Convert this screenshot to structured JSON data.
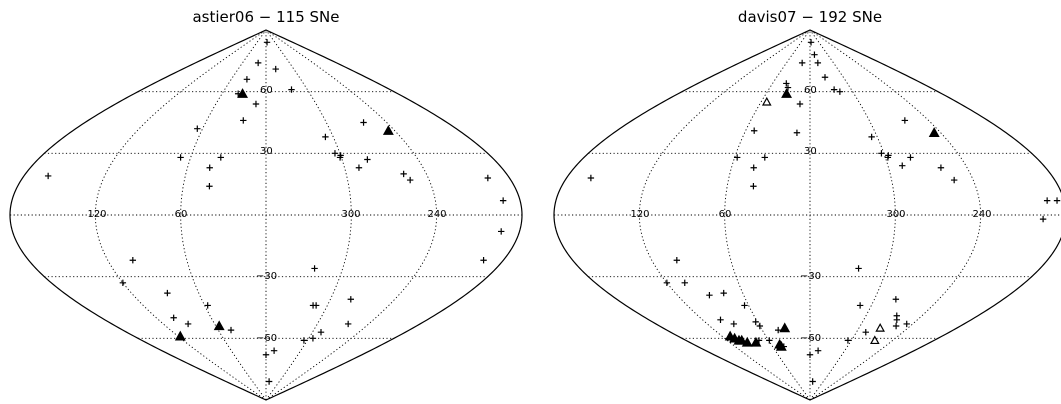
{
  "chart_data": [
    {
      "type": "scatter",
      "projection": "sinusoidal",
      "title": "astier06 − 115 SNe",
      "lon_ticks": [
        "120",
        "60",
        "300",
        "240"
      ],
      "lat_ticks": [
        "60",
        "30",
        "−30",
        "−60"
      ],
      "grid": true,
      "points": [
        {
          "lon": 353,
          "lat": 84,
          "m": "+"
        },
        {
          "lon": 20,
          "lat": 74,
          "m": "+"
        },
        {
          "lon": 33,
          "lat": 66,
          "m": "+"
        },
        {
          "lon": 38,
          "lat": 59,
          "m": "+"
        },
        {
          "lon": 12,
          "lat": 54,
          "m": "+"
        },
        {
          "lon": 323,
          "lat": 61,
          "m": "+"
        },
        {
          "lon": 339,
          "lat": 71,
          "m": "+"
        },
        {
          "lon": 32,
          "lat": 59,
          "m": "▲"
        },
        {
          "lon": 23,
          "lat": 46,
          "m": "+"
        },
        {
          "lon": 65,
          "lat": 42,
          "m": "+"
        },
        {
          "lon": 68,
          "lat": 28,
          "m": "+"
        },
        {
          "lon": 36,
          "lat": 28,
          "m": "+"
        },
        {
          "lon": 43,
          "lat": 23,
          "m": "+"
        },
        {
          "lon": 41,
          "lat": 14,
          "m": "+"
        },
        {
          "lon": 307,
          "lat": 38,
          "m": "+"
        },
        {
          "lon": 304,
          "lat": 30,
          "m": "+"
        },
        {
          "lon": 300,
          "lat": 29,
          "m": "+"
        },
        {
          "lon": 301,
          "lat": 28,
          "m": "+"
        },
        {
          "lon": 289,
          "lat": 23,
          "m": "+"
        },
        {
          "lon": 280,
          "lat": 27,
          "m": "+"
        },
        {
          "lon": 263,
          "lat": 45,
          "m": "+"
        },
        {
          "lon": 246,
          "lat": 41,
          "m": "▲"
        },
        {
          "lon": 257,
          "lat": 20,
          "m": "+"
        },
        {
          "lon": 254,
          "lat": 17,
          "m": "+"
        },
        {
          "lon": 162,
          "lat": 19,
          "m": "+"
        },
        {
          "lon": 196,
          "lat": 18,
          "m": "+"
        },
        {
          "lon": 195,
          "lat": -22,
          "m": "+"
        },
        {
          "lon": 120,
          "lat": -33,
          "m": "+"
        },
        {
          "lon": 101,
          "lat": -22,
          "m": "+"
        },
        {
          "lon": 88,
          "lat": -38,
          "m": "+"
        },
        {
          "lon": 101,
          "lat": -50,
          "m": "+"
        },
        {
          "lon": 91,
          "lat": -53,
          "m": "+"
        },
        {
          "lon": 117,
          "lat": -59,
          "m": "▲"
        },
        {
          "lon": 57,
          "lat": -44,
          "m": "+"
        },
        {
          "lon": 44,
          "lat": -56,
          "m": "+"
        },
        {
          "lon": 56,
          "lat": -54,
          "m": "▲"
        },
        {
          "lon": 322,
          "lat": -26,
          "m": "+"
        },
        {
          "lon": 311,
          "lat": -44,
          "m": "+"
        },
        {
          "lon": 314,
          "lat": -44,
          "m": "+"
        },
        {
          "lon": 281,
          "lat": -41,
          "m": "+"
        },
        {
          "lon": 289,
          "lat": -57,
          "m": "+"
        },
        {
          "lon": 305,
          "lat": -61,
          "m": "+"
        },
        {
          "lon": 294,
          "lat": -60,
          "m": "+"
        },
        {
          "lon": 264,
          "lat": -53,
          "m": "+"
        },
        {
          "lon": 346,
          "lat": -66,
          "m": "+"
        },
        {
          "lon": 0,
          "lat": -68,
          "m": "+"
        },
        {
          "lon": 346,
          "lat": -81,
          "m": "+"
        },
        {
          "lon": 192,
          "lat": 7,
          "m": "+"
        },
        {
          "lon": 193,
          "lat": -8,
          "m": "+"
        }
      ]
    },
    {
      "type": "scatter",
      "projection": "sinusoidal",
      "title": "davis07 − 192 SNe",
      "lon_ticks": [
        "120",
        "60",
        "300",
        "240"
      ],
      "lat_ticks": [
        "60",
        "30",
        "−30",
        "−60"
      ],
      "grid": true,
      "points": [
        {
          "lon": 353,
          "lat": 84,
          "m": "+"
        },
        {
          "lon": 345,
          "lat": 78,
          "m": "+"
        },
        {
          "lon": 340,
          "lat": 74,
          "m": "+"
        },
        {
          "lon": 333,
          "lat": 67,
          "m": "+"
        },
        {
          "lon": 325,
          "lat": 61,
          "m": "+"
        },
        {
          "lon": 318,
          "lat": 60,
          "m": "+"
        },
        {
          "lon": 20,
          "lat": 74,
          "m": "+"
        },
        {
          "lon": 38,
          "lat": 64,
          "m": "+"
        },
        {
          "lon": 33,
          "lat": 62,
          "m": "+"
        },
        {
          "lon": 32,
          "lat": 59,
          "m": "▲"
        },
        {
          "lon": 53,
          "lat": 55,
          "m": "△"
        },
        {
          "lon": 12,
          "lat": 54,
          "m": "+"
        },
        {
          "lon": 52,
          "lat": 41,
          "m": "+"
        },
        {
          "lon": 12,
          "lat": 40,
          "m": "+"
        },
        {
          "lon": 58,
          "lat": 28,
          "m": "+"
        },
        {
          "lon": 36,
          "lat": 28,
          "m": "+"
        },
        {
          "lon": 43,
          "lat": 23,
          "m": "+"
        },
        {
          "lon": 41,
          "lat": 14,
          "m": "+"
        },
        {
          "lon": 264,
          "lat": 46,
          "m": "+"
        },
        {
          "lon": 246,
          "lat": 40,
          "m": "▲"
        },
        {
          "lon": 305,
          "lat": 38,
          "m": "+"
        },
        {
          "lon": 302,
          "lat": 30,
          "m": "+"
        },
        {
          "lon": 298,
          "lat": 28,
          "m": "+"
        },
        {
          "lon": 297,
          "lat": 29,
          "m": "+"
        },
        {
          "lon": 289,
          "lat": 24,
          "m": "+"
        },
        {
          "lon": 280,
          "lat": 28,
          "m": "+"
        },
        {
          "lon": 260,
          "lat": 23,
          "m": "+"
        },
        {
          "lon": 254,
          "lat": 17,
          "m": "+"
        },
        {
          "lon": 162,
          "lat": 18,
          "m": "+"
        },
        {
          "lon": 196,
          "lat": -2,
          "m": "+"
        },
        {
          "lon": 185,
          "lat": 7,
          "m": "+"
        },
        {
          "lon": 120,
          "lat": -33,
          "m": "+"
        },
        {
          "lon": 101,
          "lat": -22,
          "m": "+"
        },
        {
          "lon": 105,
          "lat": -33,
          "m": "+"
        },
        {
          "lon": 91,
          "lat": -39,
          "m": "+"
        },
        {
          "lon": 100,
          "lat": -51,
          "m": "+"
        },
        {
          "lon": 89,
          "lat": -53,
          "m": "+"
        },
        {
          "lon": 77,
          "lat": -38,
          "m": "+"
        },
        {
          "lon": 64,
          "lat": -44,
          "m": "+"
        },
        {
          "lon": 62,
          "lat": -52,
          "m": "+"
        },
        {
          "lon": 60,
          "lat": -54,
          "m": "+"
        },
        {
          "lon": 40,
          "lat": -56,
          "m": "+"
        },
        {
          "lon": 31,
          "lat": -55,
          "m": "▲"
        },
        {
          "lon": 109,
          "lat": -59,
          "m": "▲"
        },
        {
          "lon": 106,
          "lat": -60,
          "m": "▲"
        },
        {
          "lon": 103,
          "lat": -61,
          "m": "▲"
        },
        {
          "lon": 99,
          "lat": -61,
          "m": "▲"
        },
        {
          "lon": 94,
          "lat": -62,
          "m": "▲"
        },
        {
          "lon": 81,
          "lat": -62,
          "m": "▲"
        },
        {
          "lon": 74,
          "lat": -61,
          "m": "+"
        },
        {
          "lon": 59,
          "lat": -61,
          "m": "+"
        },
        {
          "lon": 47,
          "lat": -63,
          "m": "▲"
        },
        {
          "lon": 46,
          "lat": -64,
          "m": "▲"
        },
        {
          "lon": 42,
          "lat": -64,
          "m": "+"
        },
        {
          "lon": 322,
          "lat": -26,
          "m": "+"
        },
        {
          "lon": 311,
          "lat": -44,
          "m": "+"
        },
        {
          "lon": 280,
          "lat": -41,
          "m": "+"
        },
        {
          "lon": 267,
          "lat": -49,
          "m": "+"
        },
        {
          "lon": 263,
          "lat": -51,
          "m": "+"
        },
        {
          "lon": 257,
          "lat": -54,
          "m": "+"
        },
        {
          "lon": 247,
          "lat": -53,
          "m": "+"
        },
        {
          "lon": 274,
          "lat": -55,
          "m": "△"
        },
        {
          "lon": 288,
          "lat": -57,
          "m": "+"
        },
        {
          "lon": 305,
          "lat": -61,
          "m": "+"
        },
        {
          "lon": 266,
          "lat": -61,
          "m": "△"
        },
        {
          "lon": 346,
          "lat": -66,
          "m": "+"
        },
        {
          "lon": 0,
          "lat": -68,
          "m": "+"
        },
        {
          "lon": 348,
          "lat": -81,
          "m": "+"
        },
        {
          "lon": 192,
          "lat": 7,
          "m": "+"
        }
      ]
    }
  ]
}
